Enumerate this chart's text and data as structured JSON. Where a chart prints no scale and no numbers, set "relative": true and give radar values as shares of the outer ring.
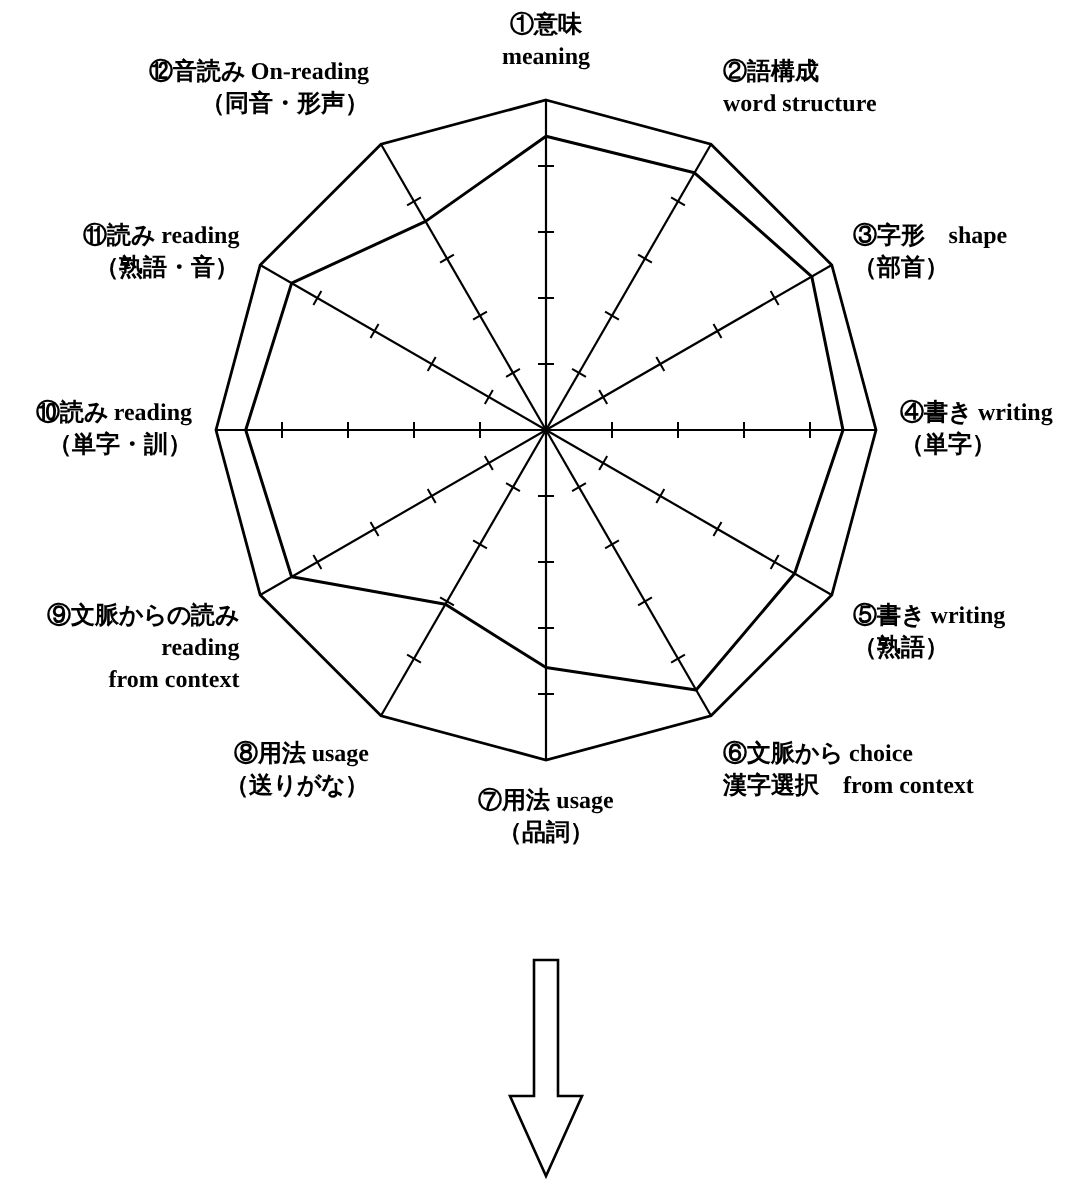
{
  "chart_data": {
    "type": "radar",
    "relative": true,
    "marker": "none",
    "line_style": "solid",
    "categories": [
      "①意味\nmeaning",
      "②語構成\nword structure",
      "③字形　shape\n（部首）",
      "④書き writing\n（単字）",
      "⑤書き writing\n（熟語）",
      "⑥文脈から choice\n漢字選択　from context",
      "⑦用法 usage\n（品詞）",
      "⑧用法 usage\n（送りがな）",
      "⑨文脈からの読み\nreading\nfrom context",
      "⑩読み reading\n（単字・訓）",
      "⑪読み reading\n（熟語・音）",
      "⑫音読み On-reading\n（同音・形声）"
    ],
    "series": [
      {
        "color": "#000000",
        "values": [
          0.89,
          0.9,
          0.93,
          0.9,
          0.87,
          0.91,
          0.72,
          0.61,
          0.89,
          0.91,
          0.89,
          0.73
        ]
      }
    ]
  }
}
